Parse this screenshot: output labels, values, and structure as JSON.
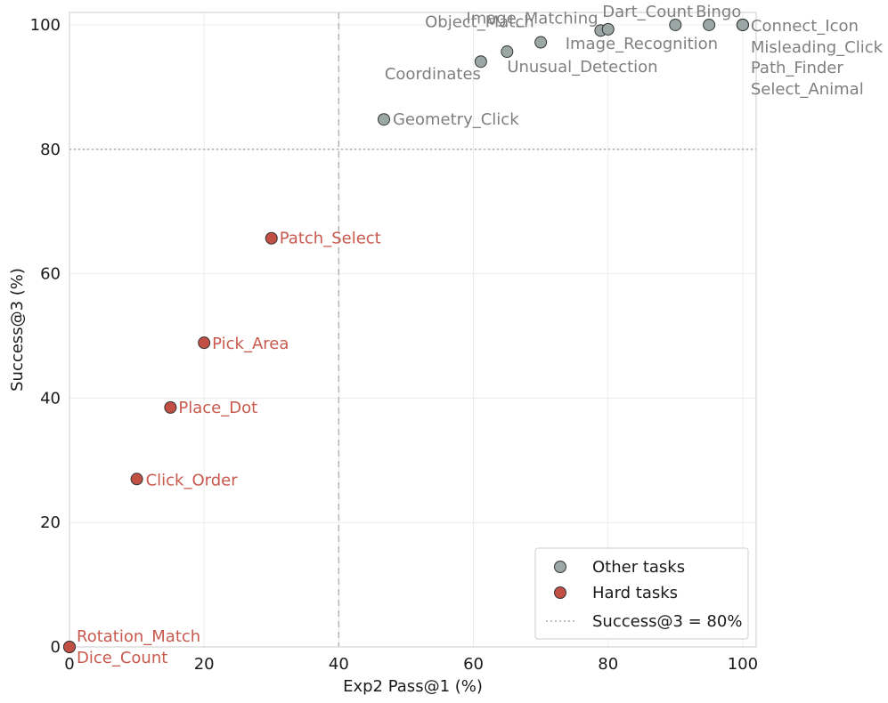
{
  "chart_data": {
    "type": "scatter",
    "title": "",
    "xlabel": "Exp2 Pass@1 (%)",
    "ylabel": "Success@3 (%)",
    "xlim": [
      0,
      102
    ],
    "ylim": [
      0,
      102
    ],
    "x_ticks": [
      0,
      20,
      40,
      60,
      80,
      100
    ],
    "y_ticks": [
      0,
      20,
      40,
      60,
      80,
      100
    ],
    "grid": true,
    "vline": {
      "x": 40,
      "style": "dashed"
    },
    "hline": {
      "y": 80,
      "style": "dotted",
      "label": "Success@3 = 80%"
    },
    "legend": {
      "position": "bottom-right",
      "entries": [
        {
          "label": "Other tasks",
          "color": "#9aa7a4",
          "kind": "marker"
        },
        {
          "label": "Hard tasks",
          "color": "#c24f44",
          "kind": "marker"
        },
        {
          "label": "Success@3 = 80%",
          "color": "#aaaaaa",
          "kind": "line"
        }
      ]
    },
    "colors": {
      "other": "#9aa7a4",
      "hard": "#c24f44",
      "other_label": "#7f7f7f",
      "hard_label": "#c9594d"
    },
    "series": [
      {
        "name": "Other tasks",
        "points": [
          {
            "label": "Geometry_Click",
            "x": 46.7,
            "y": 84.8
          },
          {
            "label": "Coordinates",
            "x": 61.1,
            "y": 94.1
          },
          {
            "label": "Unusual_Detection",
            "x": 65.0,
            "y": 95.7
          },
          {
            "label": "Object_Match",
            "x": 70.0,
            "y": 97.2
          },
          {
            "label": "Image_Matching",
            "x": 78.9,
            "y": 99.1
          },
          {
            "label": "Image_Recognition",
            "x": 80.0,
            "y": 99.3
          },
          {
            "label": "Dart_Count",
            "x": 90.0,
            "y": 100
          },
          {
            "label": "Bingo",
            "x": 95.0,
            "y": 100
          },
          {
            "label": "Connect_Icon",
            "x": 100,
            "y": 100
          },
          {
            "label": "Misleading_Click",
            "x": 100,
            "y": 100
          },
          {
            "label": "Path_Finder",
            "x": 100,
            "y": 100
          },
          {
            "label": "Select_Animal",
            "x": 100,
            "y": 100
          }
        ]
      },
      {
        "name": "Hard tasks",
        "points": [
          {
            "label": "Patch_Select",
            "x": 30.0,
            "y": 65.7
          },
          {
            "label": "Pick_Area",
            "x": 20.0,
            "y": 48.9
          },
          {
            "label": "Place_Dot",
            "x": 15.0,
            "y": 38.5
          },
          {
            "label": "Click_Order",
            "x": 10.0,
            "y": 27.0
          },
          {
            "label": "Rotation_Match",
            "x": 0,
            "y": 0
          },
          {
            "label": "Dice_Count",
            "x": 0,
            "y": 0
          }
        ]
      }
    ]
  }
}
